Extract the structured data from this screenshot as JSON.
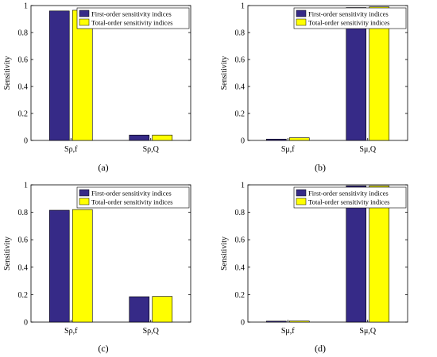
{
  "figure": {
    "colors": {
      "series_1": "#362a87",
      "series_2": "#ffff00",
      "axis": "#000000"
    },
    "panels": [
      {
        "panel_label": "(a)"
      },
      {
        "panel_label": "(b)"
      },
      {
        "panel_label": "(c)"
      },
      {
        "panel_label": "(d)"
      }
    ]
  },
  "chart_data": [
    {
      "type": "bar",
      "categories": [
        "Sρ,f",
        "Sρ,Q"
      ],
      "ylabel": "Sensitivity",
      "ylim": [
        0,
        1
      ],
      "yticks": [
        "0",
        "0.2",
        "0.4",
        "0.6",
        "0.8",
        "1"
      ],
      "series": [
        {
          "name": "First-order sensitivity indices",
          "values": [
            0.96,
            0.04
          ]
        },
        {
          "name": "Total-order sensitivity indices",
          "values": [
            0.965,
            0.04
          ]
        }
      ],
      "legend": "top-right",
      "grid": false
    },
    {
      "type": "bar",
      "categories": [
        "Sμ,f",
        "Sμ,Q"
      ],
      "ylabel": "Sensitivity",
      "ylim": [
        0,
        1
      ],
      "yticks": [
        "0",
        "0.2",
        "0.4",
        "0.6",
        "0.8",
        "1"
      ],
      "series": [
        {
          "name": "First-order sensitivity indices",
          "values": [
            0.01,
            0.985
          ]
        },
        {
          "name": "Total-order sensitivity indices",
          "values": [
            0.02,
            0.99
          ]
        }
      ],
      "legend": "top-right",
      "grid": false
    },
    {
      "type": "bar",
      "categories": [
        "Sρ,f",
        "Sρ,Q"
      ],
      "ylabel": "Sensitivity",
      "ylim": [
        0,
        1
      ],
      "yticks": [
        "0",
        "0.2",
        "0.4",
        "0.6",
        "0.8",
        "1"
      ],
      "series": [
        {
          "name": "First-order sensitivity indices",
          "values": [
            0.815,
            0.185
          ]
        },
        {
          "name": "Total-order sensitivity indices",
          "values": [
            0.82,
            0.187
          ]
        }
      ],
      "legend": "top-right",
      "grid": false
    },
    {
      "type": "bar",
      "categories": [
        "Sμ,f",
        "Sμ,Q"
      ],
      "ylabel": "Sensitivity",
      "ylim": [
        0,
        1
      ],
      "yticks": [
        "0",
        "0.2",
        "0.4",
        "0.6",
        "0.8",
        "1"
      ],
      "series": [
        {
          "name": "First-order sensitivity indices",
          "values": [
            0.007,
            0.993
          ]
        },
        {
          "name": "Total-order sensitivity indices",
          "values": [
            0.008,
            0.993
          ]
        }
      ],
      "legend": "top-right",
      "grid": false
    }
  ]
}
